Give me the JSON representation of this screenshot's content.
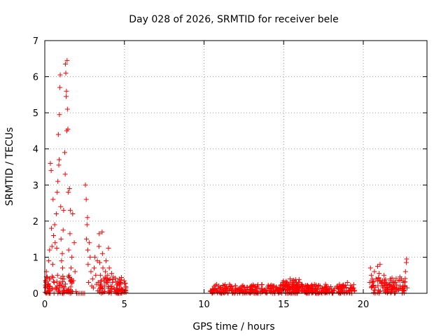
{
  "chart_data": {
    "type": "scatter",
    "title": "Day 028 of 2026, SRMTID for receiver bele",
    "xlabel": "GPS time / hours",
    "ylabel": "SRMTID / TECUs",
    "xlim": [
      0,
      24
    ],
    "ylim": [
      0,
      7
    ],
    "grid": true,
    "x_ticks": [
      0,
      5,
      10,
      15,
      20
    ],
    "y_ticks": [
      0,
      1,
      2,
      3,
      4,
      5,
      6,
      7
    ],
    "marker": "+",
    "color": "#ff0000",
    "series": [
      {
        "name": "SRMTID",
        "points": [
          [
            0.05,
            0.35
          ],
          [
            0.1,
            0.6
          ],
          [
            0.15,
            0.45
          ],
          [
            0.2,
            0.25
          ],
          [
            0.25,
            0.9
          ],
          [
            0.3,
            1.2
          ],
          [
            0.32,
            0.4
          ],
          [
            0.35,
            3.6
          ],
          [
            0.4,
            3.4
          ],
          [
            0.42,
            1.8
          ],
          [
            0.45,
            1.3
          ],
          [
            0.5,
            0.8
          ],
          [
            0.52,
            2.6
          ],
          [
            0.55,
            1.6
          ],
          [
            0.6,
            0.3
          ],
          [
            0.62,
            1.9
          ],
          [
            0.65,
            1.4
          ],
          [
            0.7,
            0.1
          ],
          [
            0.72,
            2.2
          ],
          [
            0.75,
            1.25
          ],
          [
            0.78,
            2.8
          ],
          [
            0.8,
            0.5
          ],
          [
            0.82,
            3.1
          ],
          [
            0.85,
            4.4
          ],
          [
            0.88,
            3.55
          ],
          [
            0.9,
            3.7
          ],
          [
            0.92,
            4.95
          ],
          [
            0.95,
            5.7
          ],
          [
            0.97,
            6.05
          ],
          [
            1.0,
            2.4
          ],
          [
            1.02,
            1.5
          ],
          [
            1.05,
            0.9
          ],
          [
            1.08,
            0.2
          ],
          [
            1.1,
            1.1
          ],
          [
            1.12,
            0.7
          ],
          [
            1.15,
            1.75
          ],
          [
            1.18,
            2.3
          ],
          [
            1.2,
            0.4
          ],
          [
            1.22,
            0.15
          ],
          [
            1.25,
            3.9
          ],
          [
            1.28,
            3.3
          ],
          [
            1.3,
            6.35
          ],
          [
            1.32,
            6.1
          ],
          [
            1.34,
            5.45
          ],
          [
            1.36,
            5.6
          ],
          [
            1.38,
            4.5
          ],
          [
            1.4,
            6.45
          ],
          [
            1.42,
            5.1
          ],
          [
            1.45,
            4.55
          ],
          [
            1.48,
            2.8
          ],
          [
            1.5,
            1.2
          ],
          [
            1.52,
            0.5
          ],
          [
            1.55,
            2.9
          ],
          [
            1.58,
            1.65
          ],
          [
            1.6,
            2.3
          ],
          [
            1.65,
            0.7
          ],
          [
            1.7,
            1.0
          ],
          [
            1.75,
            2.2
          ],
          [
            1.8,
            0.35
          ],
          [
            1.85,
            1.4
          ],
          [
            1.9,
            0.6
          ],
          [
            1.95,
            0.05
          ],
          [
            2.0,
            0.0
          ],
          [
            2.1,
            0.0
          ],
          [
            2.2,
            0.0
          ],
          [
            2.3,
            0.0
          ],
          [
            2.4,
            0.0
          ],
          [
            2.5,
            0.0
          ],
          [
            2.55,
            3.0
          ],
          [
            2.6,
            2.6
          ],
          [
            2.62,
            1.5
          ],
          [
            2.65,
            1.9
          ],
          [
            2.68,
            2.1
          ],
          [
            2.7,
            1.2
          ],
          [
            2.72,
            0.8
          ],
          [
            2.75,
            0.3
          ],
          [
            2.8,
            1.4
          ],
          [
            2.85,
            1.0
          ],
          [
            2.9,
            0.6
          ],
          [
            2.95,
            0.2
          ],
          [
            3.0,
            0.4
          ],
          [
            3.05,
            0.15
          ],
          [
            3.1,
            0.7
          ],
          [
            3.15,
            1.0
          ],
          [
            3.2,
            0.5
          ],
          [
            3.25,
            0.25
          ],
          [
            3.3,
            0.9
          ],
          [
            3.35,
            0.3
          ],
          [
            3.4,
            1.3
          ],
          [
            3.42,
            1.65
          ],
          [
            3.45,
            0.85
          ],
          [
            3.5,
            0.5
          ],
          [
            3.55,
            0.35
          ],
          [
            3.6,
            1.7
          ],
          [
            3.62,
            1.1
          ],
          [
            3.65,
            0.7
          ],
          [
            3.7,
            0.4
          ],
          [
            3.75,
            0.2
          ],
          [
            3.8,
            0.6
          ],
          [
            3.85,
            0.9
          ],
          [
            3.9,
            0.3
          ],
          [
            3.95,
            0.5
          ],
          [
            4.0,
            1.25
          ],
          [
            4.05,
            0.7
          ],
          [
            4.1,
            0.4
          ],
          [
            4.15,
            0.2
          ],
          [
            4.2,
            0.55
          ],
          [
            4.25,
            0.3
          ],
          [
            4.3,
            0.45
          ],
          [
            4.35,
            0.15
          ],
          [
            4.4,
            0.05
          ],
          [
            4.5,
            0.1
          ],
          [
            4.6,
            0.08
          ],
          [
            4.7,
            0.12
          ],
          [
            4.8,
            0.05
          ],
          [
            4.9,
            0.1
          ],
          [
            5.0,
            0.06
          ],
          [
            5.1,
            0.15
          ],
          [
            10.4,
            0.05
          ],
          [
            10.6,
            0.1
          ],
          [
            10.8,
            0.08
          ],
          [
            11.0,
            0.12
          ],
          [
            11.2,
            0.05
          ],
          [
            11.4,
            0.15
          ],
          [
            11.6,
            0.25
          ],
          [
            11.8,
            0.1
          ],
          [
            12.0,
            0.08
          ],
          [
            12.2,
            0.12
          ],
          [
            12.4,
            0.05
          ],
          [
            12.6,
            0.1
          ],
          [
            12.8,
            0.02
          ],
          [
            13.0,
            0.08
          ],
          [
            13.2,
            0.1
          ],
          [
            13.4,
            0.15
          ],
          [
            13.6,
            0.12
          ],
          [
            13.8,
            0.1
          ],
          [
            14.0,
            0.18
          ],
          [
            14.2,
            0.12
          ],
          [
            14.4,
            0.2
          ],
          [
            14.6,
            0.1
          ],
          [
            14.8,
            0.15
          ],
          [
            15.0,
            0.22
          ],
          [
            15.2,
            0.3
          ],
          [
            15.4,
            0.4
          ],
          [
            15.6,
            0.25
          ],
          [
            15.8,
            0.3
          ],
          [
            16.0,
            0.18
          ],
          [
            16.2,
            0.2
          ],
          [
            16.4,
            0.12
          ],
          [
            16.6,
            0.15
          ],
          [
            16.8,
            0.1
          ],
          [
            17.0,
            0.14
          ],
          [
            17.2,
            0.22
          ],
          [
            17.4,
            0.12
          ],
          [
            17.6,
            0.15
          ],
          [
            17.8,
            0.18
          ],
          [
            18.0,
            0.1
          ],
          [
            18.2,
            0.14
          ],
          [
            18.4,
            0.2
          ],
          [
            18.6,
            0.12
          ],
          [
            18.8,
            0.16
          ],
          [
            19.0,
            0.3
          ],
          [
            19.2,
            0.22
          ],
          [
            19.4,
            0.15
          ],
          [
            20.4,
            0.3
          ],
          [
            20.45,
            0.7
          ],
          [
            20.5,
            0.5
          ],
          [
            20.6,
            0.2
          ],
          [
            20.7,
            0.6
          ],
          [
            20.8,
            0.4
          ],
          [
            20.9,
            0.75
          ],
          [
            21.0,
            0.55
          ],
          [
            21.05,
            0.8
          ],
          [
            21.1,
            0.35
          ],
          [
            21.2,
            0.2
          ],
          [
            21.3,
            0.5
          ],
          [
            21.4,
            0.3
          ],
          [
            21.5,
            0.15
          ],
          [
            21.6,
            0.25
          ],
          [
            21.7,
            0.4
          ],
          [
            21.8,
            0.1
          ],
          [
            21.9,
            0.2
          ],
          [
            22.0,
            0.3
          ],
          [
            22.1,
            0.15
          ],
          [
            22.2,
            0.35
          ],
          [
            22.3,
            0.45
          ],
          [
            22.4,
            0.4
          ],
          [
            22.5,
            0.3
          ],
          [
            22.6,
            0.2
          ],
          [
            22.65,
            0.6
          ],
          [
            22.7,
            0.85
          ],
          [
            22.72,
            0.95
          ],
          [
            22.75,
            0.15
          ]
        ],
        "bands": [
          [
            10.4,
            19.5,
            0.0,
            0.25
          ],
          [
            14.9,
            16.0,
            0.1,
            0.4
          ],
          [
            20.5,
            22.7,
            0.0,
            0.45
          ],
          [
            0.0,
            1.8,
            0.0,
            0.5
          ],
          [
            3.3,
            5.1,
            0.0,
            0.45
          ]
        ]
      }
    ]
  }
}
